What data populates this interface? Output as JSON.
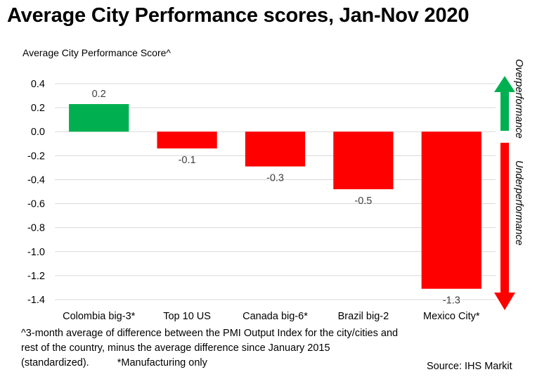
{
  "title": "Average City Performance scores, Jan-Nov 2020",
  "colors": {
    "positive": "#00b050",
    "negative": "#ff0000",
    "grid": "#d9d9d9",
    "text": "#404040"
  },
  "chart_data": {
    "type": "bar",
    "title": "Average City Performance scores, Jan-Nov 2020",
    "ylabel": "Average  City Performance Score^",
    "xlabel": "",
    "categories": [
      "Colombia big-3*",
      "Top 10 US",
      "Canada big-6*",
      "Brazil big-2",
      "Mexico City*"
    ],
    "values": [
      0.23,
      -0.14,
      -0.29,
      -0.48,
      -1.31
    ],
    "data_labels": [
      "0.2",
      "-0.1",
      "-0.3",
      "-0.5",
      "-1.3"
    ],
    "ylim": [
      -1.4,
      0.4
    ],
    "yticks": [
      0.4,
      0.2,
      0.0,
      -0.2,
      -0.4,
      -0.6,
      -0.8,
      -1.0,
      -1.2,
      -1.4
    ],
    "ytick_labels": [
      "0.4",
      "0.2",
      "0.0",
      "-0.2",
      "-0.4",
      "-0.6",
      "-0.8",
      "-1.0",
      "-1.2",
      "-1.4"
    ],
    "grid": true,
    "annotations": {
      "over": "Overperformance",
      "under": "Underperformance"
    }
  },
  "footnote": {
    "line1": "^3-month average of difference between the PMI Output Index for the city/cities and rest of the country, minus the average  difference since January 2015 (standardized).",
    "line2": "*Manufacturing only"
  },
  "source": "Source:  IHS Markit"
}
